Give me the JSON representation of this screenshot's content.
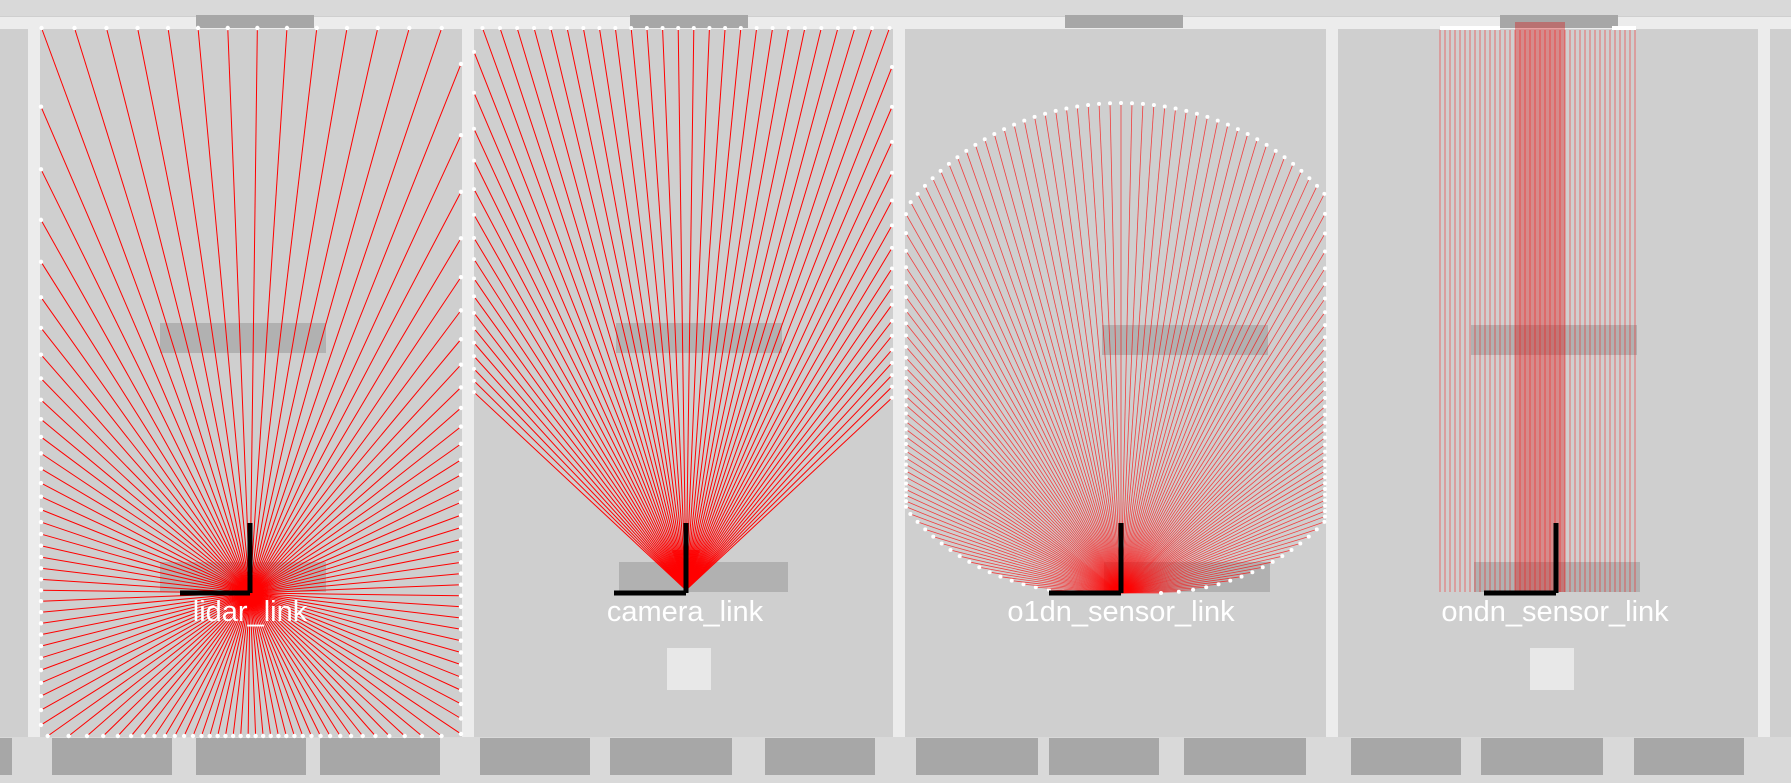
{
  "sensors": [
    {
      "frame_label": "lidar_link",
      "pattern": "omnidirectional-lidar"
    },
    {
      "frame_label": "camera_link",
      "pattern": "camera-frustum"
    },
    {
      "frame_label": "o1dn_sensor_link",
      "pattern": "one-dimensional-fan"
    },
    {
      "frame_label": "ondn_sensor_link",
      "pattern": "parallel-beams"
    }
  ],
  "colors": {
    "background": "#cfcfcf",
    "wall": "#ececec",
    "block": "#a7a7a7",
    "box": "#e8e8e8",
    "ray": "#ff0000",
    "hit_point": "#ffffff",
    "axis": "#000000",
    "label": "#ffffff"
  }
}
